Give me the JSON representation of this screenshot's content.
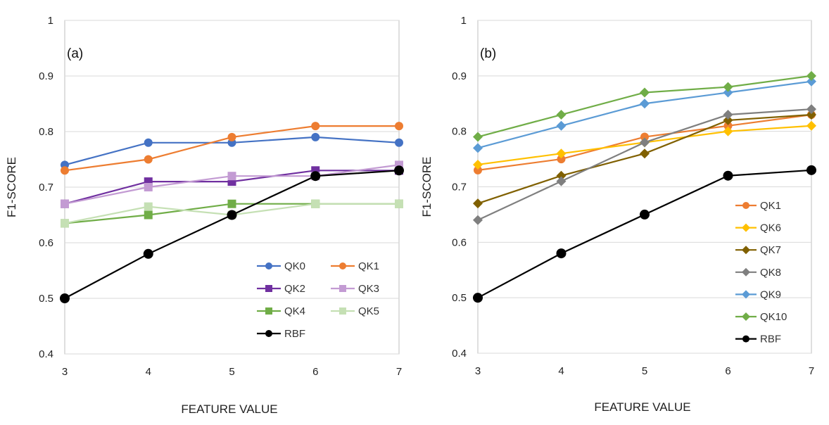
{
  "chart_data": [
    {
      "type": "line",
      "panel_label": "(a)",
      "xlabel": "FEATURE VALUE",
      "ylabel": "F1-SCORE",
      "x": [
        3,
        4,
        5,
        6,
        7
      ],
      "xlim": [
        3,
        7
      ],
      "ylim": [
        0.4,
        1
      ],
      "yticks": [
        0.4,
        0.5,
        0.6,
        0.7,
        0.8,
        0.9,
        1
      ],
      "ytick_labels": [
        "0.4",
        "0.5",
        "0.6",
        "0.7",
        "0.8",
        "0.9",
        "1"
      ],
      "xticks": [
        "3",
        "4",
        "5",
        "6",
        "7"
      ],
      "grid": true,
      "legend_placement": "bottom-right",
      "legend_columns": 2,
      "series": [
        {
          "name": "QK0",
          "color": "#4472C4",
          "marker": "circle",
          "values": [
            0.74,
            0.78,
            0.78,
            0.79,
            0.78
          ]
        },
        {
          "name": "QK1",
          "color": "#ED7D31",
          "marker": "circle",
          "values": [
            0.73,
            0.75,
            0.79,
            0.81,
            0.81
          ]
        },
        {
          "name": "QK2",
          "color": "#7030A0",
          "marker": "square",
          "values": [
            0.67,
            0.71,
            0.71,
            0.73,
            0.73
          ]
        },
        {
          "name": "QK3",
          "color": "#C39BD3",
          "marker": "square",
          "values": [
            0.67,
            0.7,
            0.72,
            0.72,
            0.74
          ]
        },
        {
          "name": "QK4",
          "color": "#70AD47",
          "marker": "square",
          "values": [
            0.635,
            0.65,
            0.67,
            0.67,
            0.67
          ]
        },
        {
          "name": "QK5",
          "color": "#C5E0B4",
          "marker": "square",
          "values": [
            0.635,
            0.665,
            0.65,
            0.67,
            0.67
          ]
        },
        {
          "name": "RBF",
          "color": "#000000",
          "marker": "circle",
          "values": [
            0.5,
            0.58,
            0.65,
            0.72,
            0.73
          ]
        }
      ]
    },
    {
      "type": "line",
      "panel_label": "(b)",
      "xlabel": "FEATURE VALUE",
      "ylabel": "F1-SCORE",
      "x": [
        3,
        4,
        5,
        6,
        7
      ],
      "xlim": [
        3,
        7
      ],
      "ylim": [
        0.4,
        1
      ],
      "yticks": [
        0.4,
        0.5,
        0.6,
        0.7,
        0.8,
        0.9,
        1
      ],
      "ytick_labels": [
        "0.4",
        "0.5",
        "0.6",
        "0.7",
        "0.8",
        "0.9",
        "1"
      ],
      "xticks": [
        "3",
        "4",
        "5",
        "6",
        "7"
      ],
      "grid": true,
      "legend_placement": "right",
      "legend_columns": 1,
      "series": [
        {
          "name": "QK1",
          "color": "#ED7D31",
          "marker": "circle",
          "values": [
            0.73,
            0.75,
            0.79,
            0.81,
            0.83
          ]
        },
        {
          "name": "QK6",
          "color": "#FFC000",
          "marker": "diamond",
          "values": [
            0.74,
            0.76,
            0.78,
            0.8,
            0.81
          ]
        },
        {
          "name": "QK7",
          "color": "#806000",
          "marker": "diamond",
          "values": [
            0.67,
            0.72,
            0.76,
            0.82,
            0.83
          ]
        },
        {
          "name": "QK8",
          "color": "#7F7F7F",
          "marker": "diamond",
          "values": [
            0.64,
            0.71,
            0.78,
            0.83,
            0.84
          ]
        },
        {
          "name": "QK9",
          "color": "#5B9BD5",
          "marker": "diamond",
          "values": [
            0.77,
            0.81,
            0.85,
            0.87,
            0.89
          ]
        },
        {
          "name": "QK10",
          "color": "#70AD47",
          "marker": "diamond",
          "values": [
            0.79,
            0.83,
            0.87,
            0.88,
            0.9
          ]
        },
        {
          "name": "RBF",
          "color": "#000000",
          "marker": "circle",
          "values": [
            0.5,
            0.58,
            0.65,
            0.72,
            0.73
          ]
        }
      ]
    }
  ]
}
